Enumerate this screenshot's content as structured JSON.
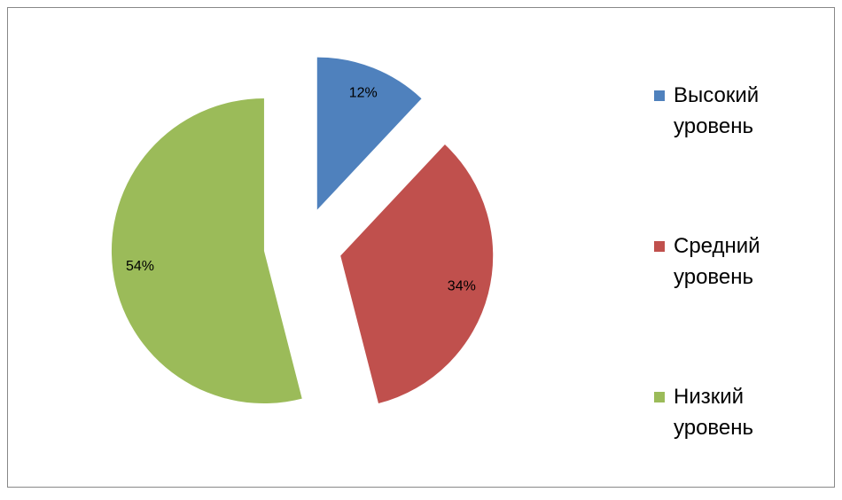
{
  "chart_data": {
    "type": "pie",
    "categories": [
      "Высокий уровень",
      "Средний уровень",
      "Низкий уровень"
    ],
    "values": [
      12,
      34,
      54
    ],
    "value_labels": [
      "12%",
      "34%",
      "54%"
    ],
    "colors": [
      "#4f81bd",
      "#c0504d",
      "#9bbb59"
    ],
    "exploded": true,
    "legend": "right"
  }
}
